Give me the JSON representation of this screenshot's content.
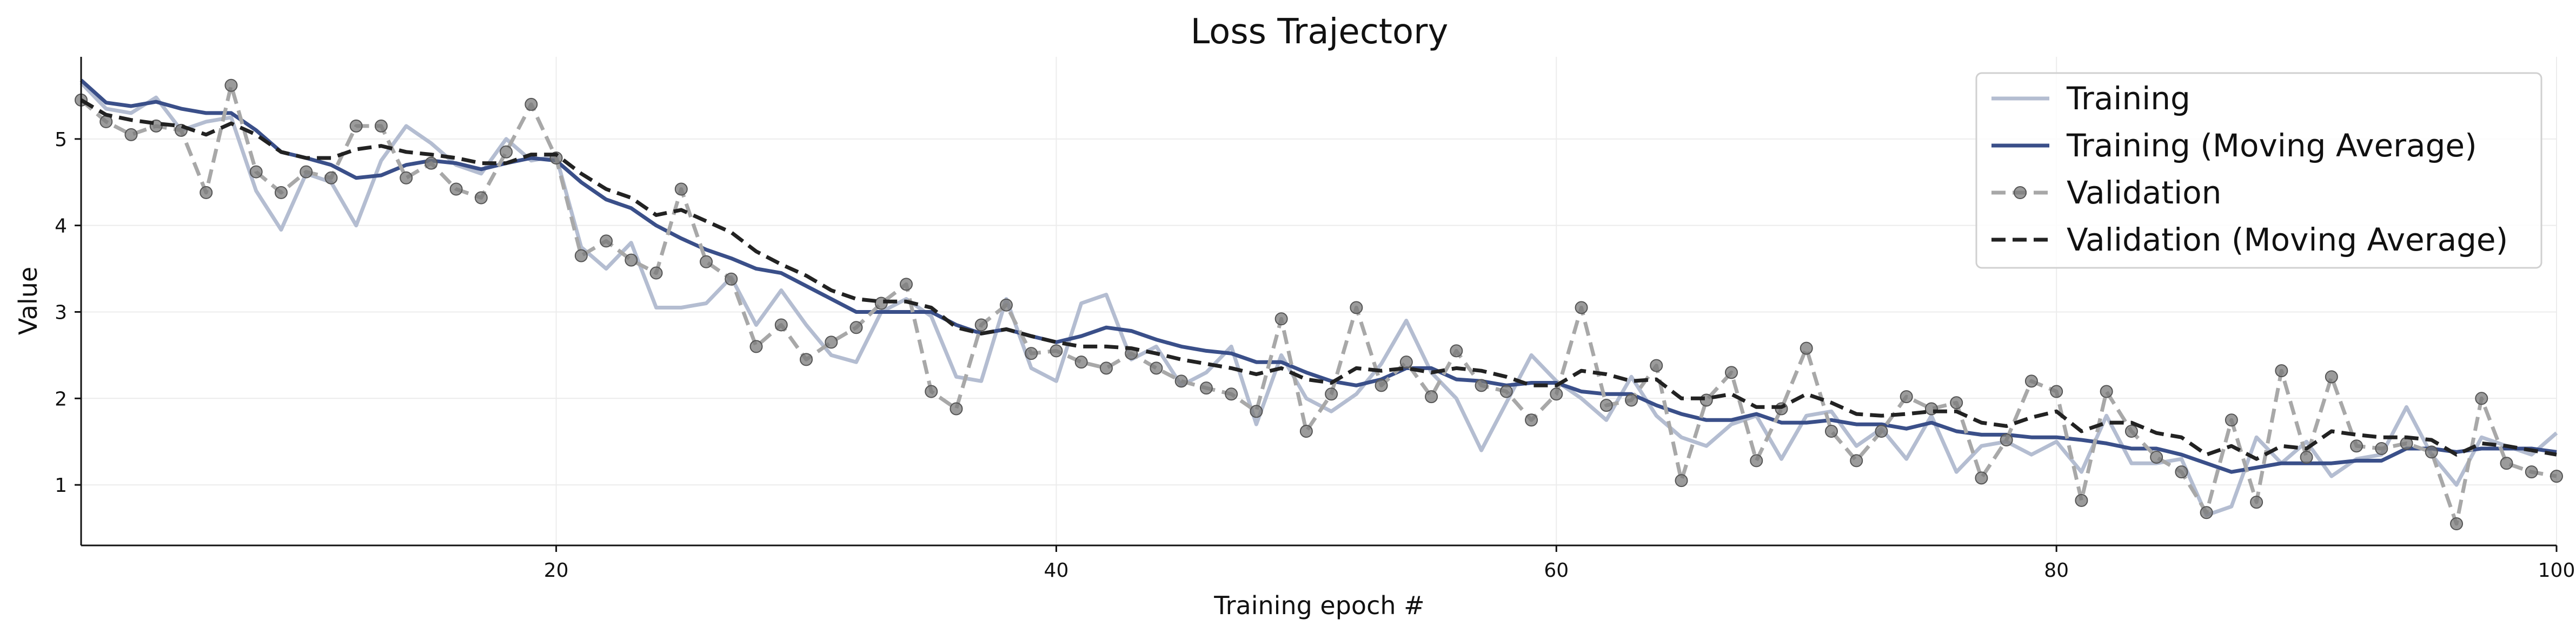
{
  "chart_data": {
    "type": "line",
    "title": "Loss Trajectory",
    "xlabel": "Training epoch #",
    "ylabel": "Value",
    "xlim": [
      1,
      100
    ],
    "ylim": [
      0.3,
      5.95
    ],
    "xticks": [
      20,
      40,
      60,
      80,
      100
    ],
    "yticks": [
      1,
      2,
      3,
      4,
      5
    ],
    "grid": true,
    "legend_position": "top-right",
    "x": [
      1,
      2,
      3,
      4,
      5,
      6,
      7,
      8,
      9,
      10,
      11,
      12,
      13,
      14,
      15,
      16,
      17,
      18,
      19,
      20,
      21,
      22,
      23,
      24,
      25,
      26,
      27,
      28,
      29,
      30,
      31,
      32,
      33,
      34,
      35,
      36,
      37,
      38,
      39,
      40,
      41,
      42,
      43,
      44,
      45,
      46,
      47,
      48,
      49,
      50,
      51,
      52,
      53,
      54,
      55,
      56,
      57,
      58,
      59,
      60,
      61,
      62,
      63,
      64,
      65,
      66,
      67,
      68,
      69,
      70,
      71,
      72,
      73,
      74,
      75,
      76,
      77,
      78,
      79,
      80,
      81,
      82,
      83,
      84,
      85,
      86,
      87,
      88,
      89,
      90,
      91,
      92,
      93,
      94,
      95,
      96,
      97,
      98,
      99,
      100
    ],
    "series": [
      {
        "name": "Training",
        "color": "#b4bdd1",
        "style": "solid",
        "markers": false,
        "values": [
          5.65,
          5.35,
          5.3,
          5.48,
          5.1,
          5.2,
          5.25,
          4.4,
          3.95,
          4.6,
          4.5,
          4.0,
          4.75,
          5.15,
          4.95,
          4.7,
          4.6,
          5.0,
          4.75,
          4.8,
          3.75,
          3.5,
          3.8,
          3.05,
          3.05,
          3.1,
          3.4,
          2.85,
          3.25,
          2.85,
          2.5,
          2.42,
          3.0,
          3.15,
          2.95,
          2.25,
          2.2,
          3.15,
          2.35,
          2.2,
          3.1,
          3.2,
          2.45,
          2.6,
          2.15,
          2.3,
          2.6,
          1.7,
          2.5,
          2.0,
          1.85,
          2.05,
          2.4,
          2.9,
          2.3,
          2.0,
          1.4,
          1.95,
          2.5,
          2.2,
          2.0,
          1.75,
          2.25,
          1.8,
          1.55,
          1.45,
          1.7,
          1.8,
          1.3,
          1.8,
          1.85,
          1.45,
          1.65,
          1.3,
          1.8,
          1.15,
          1.45,
          1.5,
          1.35,
          1.5,
          1.15,
          1.8,
          1.25,
          1.25,
          1.3,
          0.65,
          0.75,
          1.55,
          1.25,
          1.5,
          1.1,
          1.3,
          1.35,
          1.9,
          1.35,
          1.0,
          1.55,
          1.45,
          1.35,
          1.6
        ]
      },
      {
        "name": "Training (Moving Average)",
        "color": "#3a4f89",
        "style": "solid",
        "markers": false,
        "values": [
          5.68,
          5.42,
          5.38,
          5.43,
          5.35,
          5.3,
          5.3,
          5.1,
          4.85,
          4.78,
          4.7,
          4.55,
          4.58,
          4.7,
          4.75,
          4.72,
          4.65,
          4.72,
          4.78,
          4.75,
          4.5,
          4.3,
          4.2,
          4.0,
          3.85,
          3.72,
          3.62,
          3.5,
          3.45,
          3.3,
          3.15,
          3.0,
          3.0,
          3.0,
          3.0,
          2.85,
          2.75,
          2.8,
          2.72,
          2.65,
          2.72,
          2.82,
          2.78,
          2.68,
          2.6,
          2.55,
          2.52,
          2.42,
          2.42,
          2.3,
          2.2,
          2.15,
          2.22,
          2.35,
          2.35,
          2.22,
          2.2,
          2.15,
          2.18,
          2.18,
          2.08,
          2.05,
          2.05,
          1.92,
          1.82,
          1.75,
          1.75,
          1.82,
          1.72,
          1.72,
          1.75,
          1.7,
          1.7,
          1.65,
          1.72,
          1.62,
          1.58,
          1.58,
          1.55,
          1.55,
          1.52,
          1.48,
          1.42,
          1.42,
          1.35,
          1.25,
          1.15,
          1.2,
          1.25,
          1.25,
          1.25,
          1.28,
          1.28,
          1.42,
          1.42,
          1.38,
          1.42,
          1.42,
          1.42,
          1.38
        ]
      },
      {
        "name": "Validation",
        "color": "#a8a8a8",
        "style": "dashed",
        "markers": true,
        "values": [
          5.45,
          5.2,
          5.05,
          5.15,
          5.1,
          4.38,
          5.62,
          4.62,
          4.38,
          4.62,
          4.55,
          5.15,
          5.15,
          4.55,
          4.72,
          4.42,
          4.32,
          4.85,
          5.4,
          4.78,
          3.65,
          3.82,
          3.6,
          3.45,
          4.42,
          3.58,
          3.38,
          2.6,
          2.85,
          2.45,
          2.65,
          2.82,
          3.1,
          3.32,
          2.08,
          1.88,
          2.85,
          3.08,
          2.52,
          2.55,
          2.42,
          2.35,
          2.52,
          2.35,
          2.2,
          2.12,
          2.05,
          1.85,
          2.92,
          1.62,
          2.05,
          3.05,
          2.15,
          2.42,
          2.02,
          2.55,
          2.15,
          2.08,
          1.75,
          2.05,
          3.05,
          1.92,
          1.98,
          2.38,
          1.05,
          1.98,
          2.3,
          1.28,
          1.88,
          2.58,
          1.62,
          1.28,
          1.62,
          2.02,
          1.88,
          1.95,
          1.08,
          1.52,
          2.2,
          2.08,
          0.82,
          2.08,
          1.62,
          1.32,
          1.15,
          0.68,
          1.75,
          0.8,
          2.32,
          1.32,
          2.25,
          1.45,
          1.42,
          1.48,
          1.38,
          0.55,
          2.0,
          1.25,
          1.15,
          1.1
        ]
      },
      {
        "name": "Validation (Moving Average)",
        "color": "#222222",
        "style": "dashed",
        "markers": false,
        "values": [
          5.45,
          5.28,
          5.22,
          5.18,
          5.15,
          5.05,
          5.18,
          5.05,
          4.85,
          4.78,
          4.78,
          4.88,
          4.92,
          4.85,
          4.82,
          4.78,
          4.72,
          4.72,
          4.82,
          4.82,
          4.6,
          4.42,
          4.32,
          4.12,
          4.18,
          4.05,
          3.92,
          3.7,
          3.55,
          3.42,
          3.25,
          3.15,
          3.12,
          3.12,
          3.05,
          2.82,
          2.75,
          2.8,
          2.72,
          2.65,
          2.6,
          2.6,
          2.58,
          2.52,
          2.45,
          2.4,
          2.35,
          2.28,
          2.35,
          2.22,
          2.18,
          2.35,
          2.32,
          2.35,
          2.3,
          2.35,
          2.32,
          2.25,
          2.15,
          2.15,
          2.32,
          2.28,
          2.2,
          2.22,
          2.0,
          2.0,
          2.05,
          1.9,
          1.9,
          2.05,
          1.95,
          1.82,
          1.8,
          1.82,
          1.85,
          1.85,
          1.72,
          1.68,
          1.78,
          1.85,
          1.62,
          1.72,
          1.72,
          1.6,
          1.55,
          1.35,
          1.45,
          1.3,
          1.45,
          1.42,
          1.62,
          1.58,
          1.55,
          1.55,
          1.52,
          1.35,
          1.48,
          1.45,
          1.4,
          1.35
        ]
      }
    ]
  }
}
